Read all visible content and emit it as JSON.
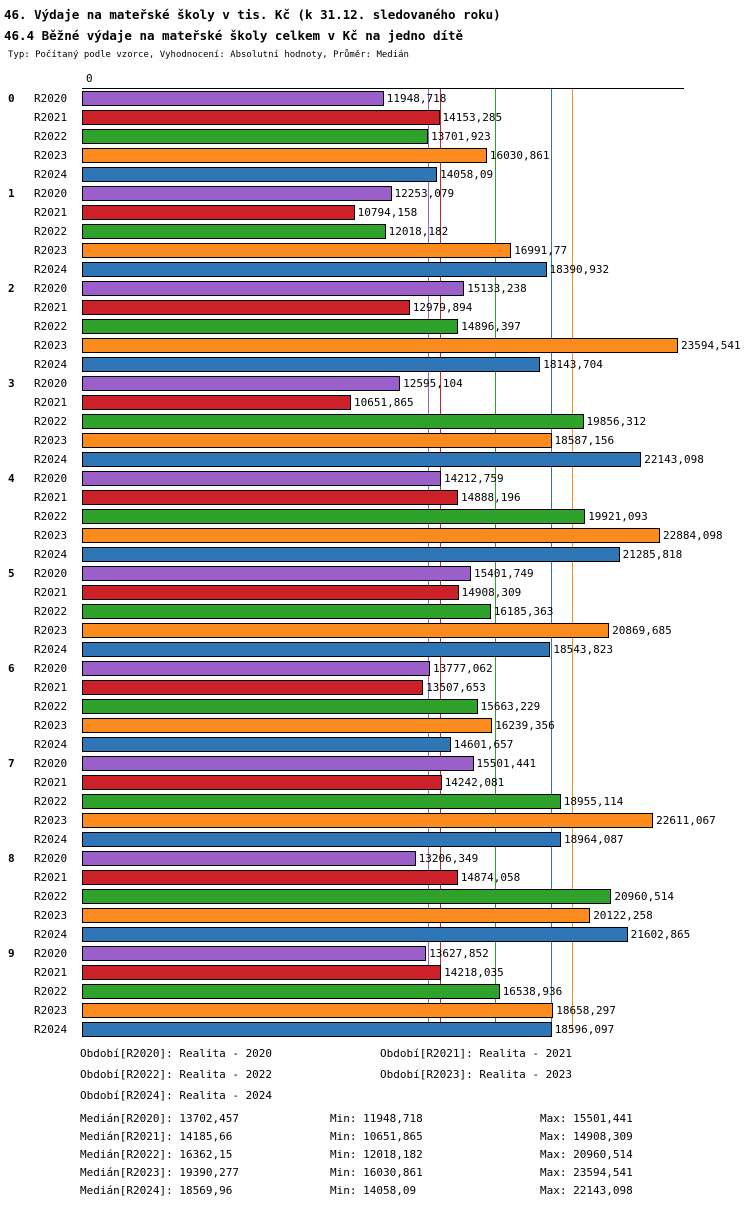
{
  "chart_data": {
    "type": "bar",
    "orientation": "horizontal",
    "title": "46. Výdaje na mateřské školy v tis. Kč (k 31.12. sledovaného roku)",
    "subtitle": "46.4 Běžné výdaje na mateřské školy celkem v Kč na jedno dítě",
    "note": "Typ: Počítaný podle vzorce, Vyhodnocení: Absolutní hodnoty, Průměr: Medián",
    "x_origin_label": "0",
    "xlim": [
      0,
      23834
    ],
    "grid": "median-lines-only",
    "legend_position": "bottom-text",
    "series": [
      "R2020",
      "R2021",
      "R2022",
      "R2023",
      "R2024"
    ],
    "colors": [
      "#9A5FC8",
      "#CC2128",
      "#2EA22B",
      "#FB8B1E",
      "#2E76B6"
    ],
    "medians": [
      13702.457,
      14185.66,
      16362.15,
      19390.277,
      18569.96
    ],
    "categories": [
      "0",
      "1",
      "2",
      "3",
      "4",
      "5",
      "6",
      "7",
      "8",
      "9"
    ],
    "groups": [
      {
        "label": "0",
        "bars": [
          "11948,718",
          "14153,285",
          "13701,923",
          "16030,861",
          "14058,09"
        ]
      },
      {
        "label": "1",
        "bars": [
          "12253,079",
          "10794,158",
          "12018,182",
          "16991,77",
          "18390,932"
        ]
      },
      {
        "label": "2",
        "bars": [
          "15133,238",
          "12979,894",
          "14896,397",
          "23594,541",
          "18143,704"
        ]
      },
      {
        "label": "3",
        "bars": [
          "12595,104",
          "10651,865",
          "19856,312",
          "18587,156",
          "22143,098"
        ]
      },
      {
        "label": "4",
        "bars": [
          "14212,759",
          "14888,196",
          "19921,093",
          "22884,098",
          "21285,818"
        ]
      },
      {
        "label": "5",
        "bars": [
          "15401,749",
          "14908,309",
          "16185,363",
          "20869,685",
          "18543,823"
        ]
      },
      {
        "label": "6",
        "bars": [
          "13777,062",
          "13507,653",
          "15663,229",
          "16239,356",
          "14601,657"
        ]
      },
      {
        "label": "7",
        "bars": [
          "15501,441",
          "14242,081",
          "18955,114",
          "22611,067",
          "18964,087"
        ]
      },
      {
        "label": "8",
        "bars": [
          "13206,349",
          "14874,058",
          "20960,514",
          "20122,258",
          "21602,865"
        ]
      },
      {
        "label": "9",
        "bars": [
          "13627,852",
          "14218,035",
          "16538,936",
          "18658,297",
          "18596,097"
        ]
      }
    ]
  },
  "footer": {
    "periods": [
      [
        "Období[R2020]: Realita - 2020",
        "Období[R2021]: Realita - 2021"
      ],
      [
        "Období[R2022]: Realita - 2022",
        "Období[R2023]: Realita - 2023"
      ],
      [
        "Období[R2024]: Realita - 2024"
      ]
    ],
    "stats": [
      [
        "Medián[R2020]: 13702,457",
        "Min: 11948,718",
        "Max: 15501,441"
      ],
      [
        "Medián[R2021]: 14185,66",
        "Min: 10651,865",
        "Max: 14908,309"
      ],
      [
        "Medián[R2022]: 16362,15",
        "Min: 12018,182",
        "Max: 20960,514"
      ],
      [
        "Medián[R2023]: 19390,277",
        "Min: 16030,861",
        "Max: 23594,541"
      ],
      [
        "Medián[R2024]: 18569,96",
        "Min: 14058,09",
        "Max: 22143,098"
      ]
    ]
  }
}
